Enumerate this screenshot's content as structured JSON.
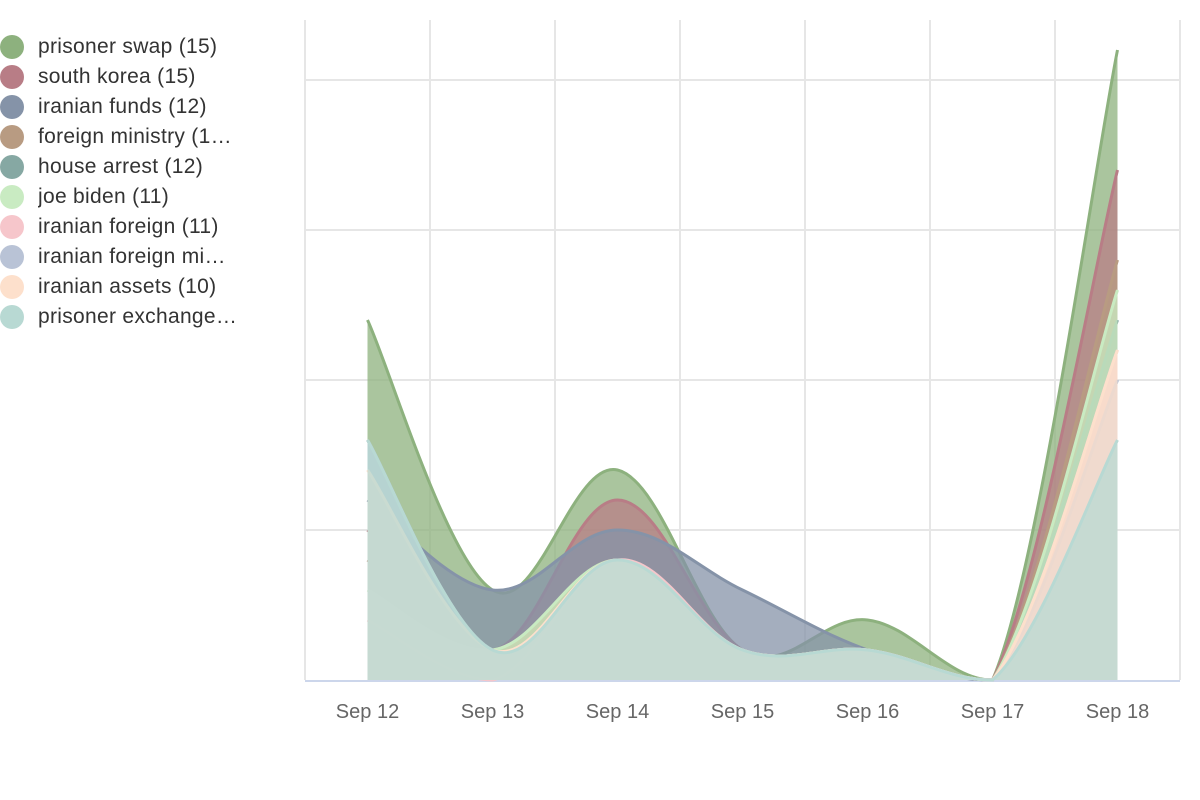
{
  "chart_data": {
    "type": "area",
    "categories": [
      "Sep 12",
      "Sep 13",
      "Sep 14",
      "Sep 15",
      "Sep 16",
      "Sep 17",
      "Sep 18"
    ],
    "ylim": [
      0,
      22
    ],
    "grid": true,
    "legend_position": "left",
    "series": [
      {
        "name": "prisoner swap (15)",
        "color": "#8db17e",
        "values": [
          12,
          3,
          7,
          1,
          2,
          0,
          21
        ]
      },
      {
        "name": "south korea (15)",
        "color": "#b87d86",
        "values": [
          5,
          1,
          6,
          1,
          1,
          0,
          17
        ]
      },
      {
        "name": "iranian funds (12)",
        "color": "#8593a8",
        "values": [
          6,
          3,
          5,
          3,
          1,
          0,
          10
        ]
      },
      {
        "name": "foreign ministry (1…",
        "color": "#b89b82",
        "values": [
          4,
          1,
          4,
          1,
          1,
          0,
          14
        ]
      },
      {
        "name": "house arrest (12)",
        "color": "#86a8a3",
        "values": [
          8,
          1,
          4,
          1,
          1,
          0,
          12
        ]
      },
      {
        "name": "joe biden (11)",
        "color": "#c9ebc2",
        "values": [
          3,
          1,
          4,
          1,
          1,
          0,
          13
        ]
      },
      {
        "name": "iranian foreign (11)",
        "color": "#f6c6cb",
        "values": [
          2,
          0,
          4,
          1,
          1,
          0,
          11
        ]
      },
      {
        "name": "iranian foreign mi…",
        "color": "#b9c3d6",
        "values": [
          8,
          1,
          4,
          1,
          1,
          0,
          10
        ]
      },
      {
        "name": "iranian assets (10)",
        "color": "#fde0cc",
        "values": [
          7,
          1,
          4,
          1,
          1,
          0,
          11
        ]
      },
      {
        "name": "prisoner exchange…",
        "color": "#b8d9d3",
        "values": [
          8,
          1,
          4,
          1,
          1,
          0,
          8
        ]
      }
    ]
  }
}
